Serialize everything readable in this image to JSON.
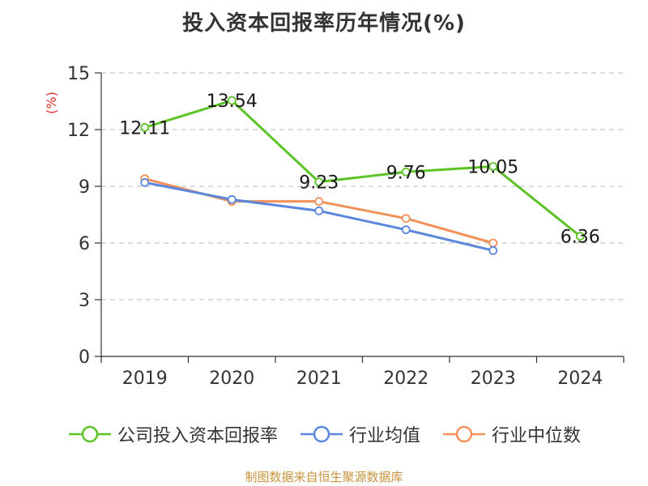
{
  "chart_data": {
    "type": "line",
    "title": "投入资本回报率历年情况(%)",
    "ylabel": "(%)",
    "xlabel": "",
    "categories": [
      "2019",
      "2020",
      "2021",
      "2022",
      "2023",
      "2024"
    ],
    "ylim": [
      0,
      15
    ],
    "yticks": [
      0,
      3,
      6,
      9,
      12,
      15
    ],
    "grid": true,
    "legend_position": "bottom",
    "series": [
      {
        "name": "公司投入资本回报率",
        "color": "#5cc327",
        "values": [
          12.11,
          13.54,
          9.23,
          9.76,
          10.05,
          6.36
        ],
        "labels": [
          "12.11",
          "13.54",
          "9.23",
          "9.76",
          "10.05",
          "6.36"
        ],
        "show_labels": true
      },
      {
        "name": "行业均值",
        "color": "#5a86dc",
        "values": [
          9.2,
          8.3,
          7.7,
          6.7,
          5.6,
          null
        ],
        "show_labels": false
      },
      {
        "name": "行业中位数",
        "color": "#f2915a",
        "values": [
          9.4,
          8.2,
          8.2,
          7.3,
          6.0,
          null
        ],
        "show_labels": false
      }
    ]
  },
  "footer": {
    "source": "制图数据来自恒生聚源数据库"
  }
}
